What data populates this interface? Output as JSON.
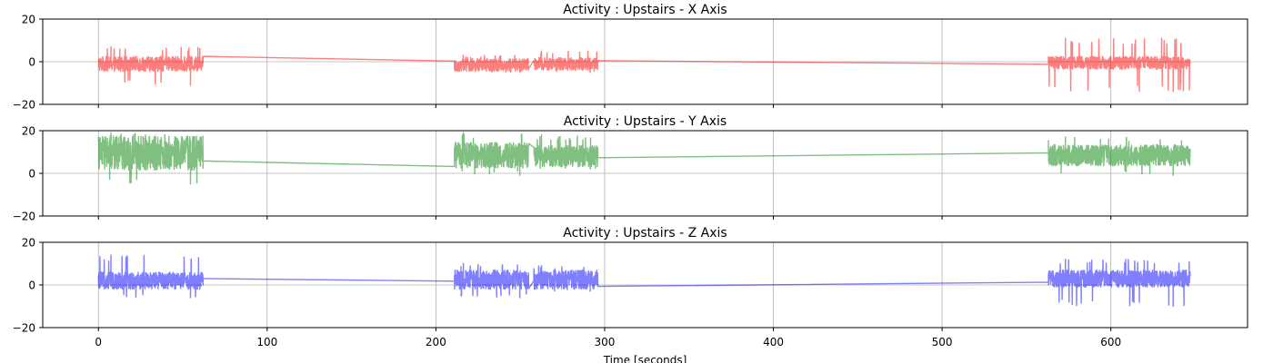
{
  "chart_data": [
    {
      "type": "line",
      "title": "Activity : Upstairs - X Axis",
      "xlabel": "",
      "ylabel": "",
      "xlim": [
        -33,
        681
      ],
      "ylim": [
        -20,
        20
      ],
      "xticks": [
        0,
        100,
        200,
        300,
        400,
        500,
        600
      ],
      "yticks": [
        -20,
        0,
        20
      ],
      "grid": true,
      "color": "#ff0000",
      "alpha": 0.5,
      "series": [
        {
          "segments": [
            {
              "x_start": 0,
              "x_end": 62,
              "center": -1,
              "amplitude": 3.5,
              "spike_max": 7,
              "spike_min": -11
            },
            {
              "x_start": 211,
              "x_end": 255,
              "center": -1.5,
              "amplitude": 3,
              "spike_max": 3,
              "spike_min": -5
            },
            {
              "x_start": 258,
              "x_end": 296,
              "center": -1,
              "amplitude": 3,
              "spike_max": 5,
              "spike_min": -5
            },
            {
              "x_start": 563,
              "x_end": 647,
              "center": -0.5,
              "amplitude": 3,
              "spike_max": 11,
              "spike_min": -14
            }
          ],
          "connectors": [
            {
              "x": [
                62,
                211
              ],
              "y": [
                2.5,
                0.3
              ]
            },
            {
              "x": [
                296,
                563
              ],
              "y": [
                -0.2,
                -1.2
              ]
            }
          ]
        }
      ]
    },
    {
      "type": "line",
      "title": "Activity : Upstairs - Y Axis",
      "xlabel": "",
      "ylabel": "",
      "xlim": [
        -33,
        681
      ],
      "ylim": [
        -20,
        20
      ],
      "xticks": [
        0,
        100,
        200,
        300,
        400,
        500,
        600
      ],
      "yticks": [
        -20,
        0,
        20
      ],
      "grid": true,
      "color": "#008000",
      "alpha": 0.5,
      "series": [
        {
          "segments": [
            {
              "x_start": 0,
              "x_end": 62,
              "center": 9.5,
              "amplitude": 8,
              "spike_max": 19,
              "spike_min": -5
            },
            {
              "x_start": 211,
              "x_end": 255,
              "center": 8.5,
              "amplitude": 6,
              "spike_max": 19,
              "spike_min": -1
            },
            {
              "x_start": 258,
              "x_end": 296,
              "center": 8,
              "amplitude": 5,
              "spike_max": 18,
              "spike_min": 2
            },
            {
              "x_start": 563,
              "x_end": 647,
              "center": 8.5,
              "amplitude": 5,
              "spike_max": 17,
              "spike_min": -1
            }
          ],
          "connectors": [
            {
              "x": [
                62,
                211
              ],
              "y": [
                5.8,
                3.2
              ]
            },
            {
              "x": [
                296,
                563
              ],
              "y": [
                9.8,
                9.6
              ]
            }
          ]
        }
      ]
    },
    {
      "type": "line",
      "title": "Activity : Upstairs - Z Axis",
      "xlabel": "Time [seconds]",
      "ylabel": "",
      "xlim": [
        -33,
        681
      ],
      "ylim": [
        -20,
        20
      ],
      "xticks": [
        0,
        100,
        200,
        300,
        400,
        500,
        600
      ],
      "yticks": [
        -20,
        0,
        20
      ],
      "grid": true,
      "color": "#0000ff",
      "alpha": 0.5,
      "series": [
        {
          "segments": [
            {
              "x_start": 0,
              "x_end": 62,
              "center": 2,
              "amplitude": 4,
              "spike_max": 14,
              "spike_min": -6
            },
            {
              "x_start": 211,
              "x_end": 255,
              "center": 2.5,
              "amplitude": 4.5,
              "spike_max": 10,
              "spike_min": -6
            },
            {
              "x_start": 258,
              "x_end": 296,
              "center": 2.5,
              "amplitude": 4.5,
              "spike_max": 9,
              "spike_min": -3
            },
            {
              "x_start": 563,
              "x_end": 647,
              "center": 3,
              "amplitude": 4,
              "spike_max": 12,
              "spike_min": -10
            }
          ],
          "connectors": [
            {
              "x": [
                62,
                211
              ],
              "y": [
                3,
                1.8
              ]
            },
            {
              "x": [
                296,
                563
              ],
              "y": [
                0.2,
                1.3
              ]
            }
          ]
        }
      ]
    }
  ]
}
